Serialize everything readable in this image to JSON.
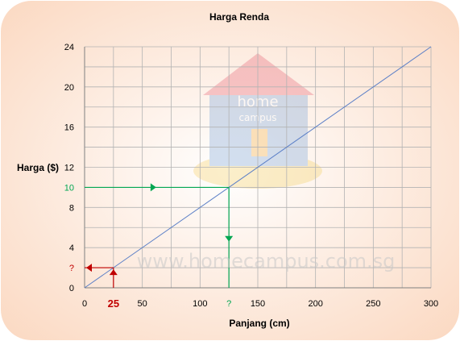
{
  "chart_data": {
    "type": "line",
    "title": "Harga Renda",
    "xlabel": "Panjang (cm)",
    "ylabel": "Harga ($)",
    "xlim": [
      0,
      300
    ],
    "ylim": [
      0,
      24
    ],
    "x_ticks": [
      0,
      50,
      100,
      150,
      200,
      250,
      300
    ],
    "y_ticks": [
      0,
      4,
      8,
      12,
      16,
      20,
      24
    ],
    "grid": true,
    "series": [
      {
        "x": [
          0,
          300
        ],
        "y": [
          0,
          24
        ],
        "color": "#5b7fc7"
      }
    ],
    "annotations": {
      "y_highlight": {
        "value": 10,
        "label": "10",
        "color": "#00a651"
      },
      "x_unknown": {
        "value": 125,
        "label": "?",
        "color": "#00a651"
      },
      "x_highlight": {
        "value": 25,
        "label": "25",
        "color": "#c00000"
      },
      "y_unknown": {
        "value": 2,
        "label": "?",
        "color": "#c00000"
      }
    }
  },
  "watermark": {
    "url_text": "www.homecampus.com.sg",
    "logo_text_1": "home",
    "logo_text_2": "campus"
  },
  "colors": {
    "background": "#fdece1",
    "grid": "#b3b3b3",
    "axis": "#808080"
  }
}
